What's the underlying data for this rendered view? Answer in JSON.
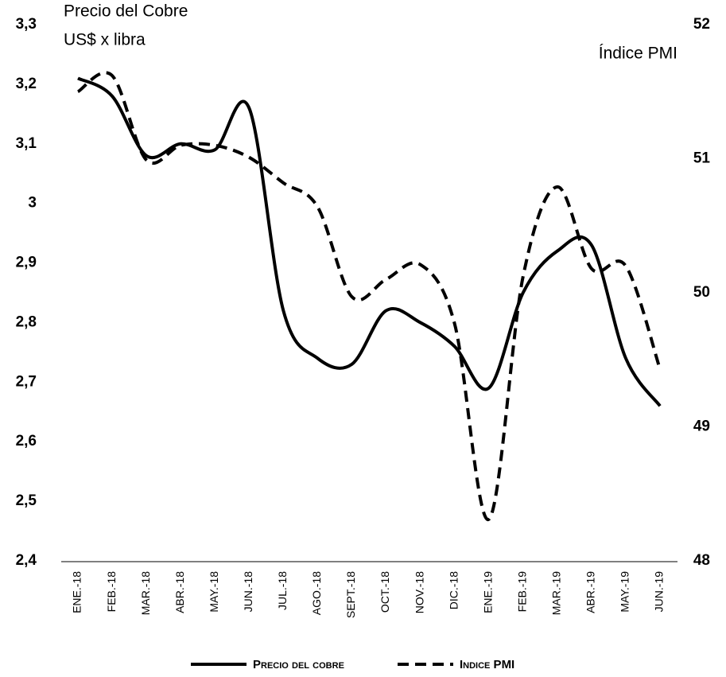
{
  "chart_data": {
    "type": "line",
    "y_label": [
      "Precio del Cobre",
      "US$ x libra"
    ],
    "y2_label": "Índice PMI",
    "categories": [
      "ENE.-18",
      "FEB.-18",
      "MAR.-18",
      "ABR.-18",
      "MAY.-18",
      "JUN.-18",
      "JUL.-18",
      "AGO.-18",
      "SEPT.-18",
      "OCT.-18",
      "NOV.-18",
      "DIC.-18",
      "ENE.-19",
      "FEB.-19",
      "MAR.-19",
      "ABR.-19",
      "MAY.-19",
      "JUN.-19"
    ],
    "series": [
      {
        "name": "Precio del cobre",
        "color": "#000000",
        "dash": "solid",
        "values": [
          3.21,
          3.18,
          3.08,
          3.1,
          3.09,
          3.16,
          2.82,
          2.74,
          2.73,
          2.82,
          2.8,
          2.76,
          2.69,
          2.85,
          2.92,
          2.93,
          2.74,
          2.66
        ]
      },
      {
        "name": "Indice PMI",
        "color": "#000000",
        "dash": "dashed",
        "axis": "y2",
        "values": [
          51.5,
          51.62,
          50.99,
          51.1,
          51.1,
          51.01,
          50.82,
          50.64,
          49.97,
          50.1,
          50.21,
          49.77,
          48.31,
          50.12,
          50.79,
          50.18,
          50.2,
          49.43
        ]
      }
    ],
    "ylim": [
      2.4,
      3.3
    ],
    "yticks": [
      {
        "value": 2.4,
        "label": "2,4"
      },
      {
        "value": 2.5,
        "label": "2,5"
      },
      {
        "value": 2.6,
        "label": "2,6"
      },
      {
        "value": 2.7,
        "label": "2,7"
      },
      {
        "value": 2.8,
        "label": "2,8"
      },
      {
        "value": 2.9,
        "label": "2,9"
      },
      3,
      {
        "value": 3.1,
        "label": "3,1"
      },
      {
        "value": 3.2,
        "label": "3,2"
      },
      {
        "value": 3.3,
        "label": "3,3"
      }
    ],
    "y2lim": [
      48,
      52
    ],
    "y2ticks": [
      48,
      49,
      50,
      51,
      52
    ],
    "legend": "bottom"
  }
}
